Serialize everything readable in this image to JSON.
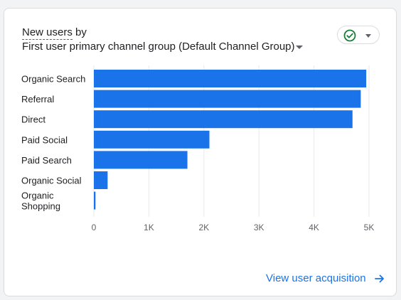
{
  "card": {
    "metric_label": "New users",
    "by_word": "by",
    "dimension_label": "First user primary channel group (Default Channel Group)",
    "status_icon": "check-circle-icon",
    "status_color": "#188038",
    "link_label": "View user acquisition",
    "link_icon": "arrow-right-icon"
  },
  "chart_data": {
    "type": "bar",
    "orientation": "horizontal",
    "categories": [
      "Organic Search",
      "Referral",
      "Direct",
      "Paid Social",
      "Paid Search",
      "Organic Social",
      "Organic Shopping"
    ],
    "category_lines": [
      [
        "Organic Search"
      ],
      [
        "Referral"
      ],
      [
        "Direct"
      ],
      [
        "Paid Social"
      ],
      [
        "Paid Search"
      ],
      [
        "Organic Social"
      ],
      [
        "Organic",
        "Shopping"
      ]
    ],
    "series": [
      {
        "values": [
          4950,
          4850,
          4700,
          2100,
          1700,
          250,
          30
        ],
        "color": "#1a73e8"
      }
    ],
    "x_ticks": [
      "0",
      "1K",
      "2K",
      "3K",
      "4K",
      "5K"
    ],
    "x_tick_values": [
      0,
      1000,
      2000,
      3000,
      4000,
      5000
    ],
    "xlim": [
      0,
      5000
    ],
    "grid": "vertical",
    "legend": "none",
    "xlabel": "",
    "ylabel": ""
  }
}
